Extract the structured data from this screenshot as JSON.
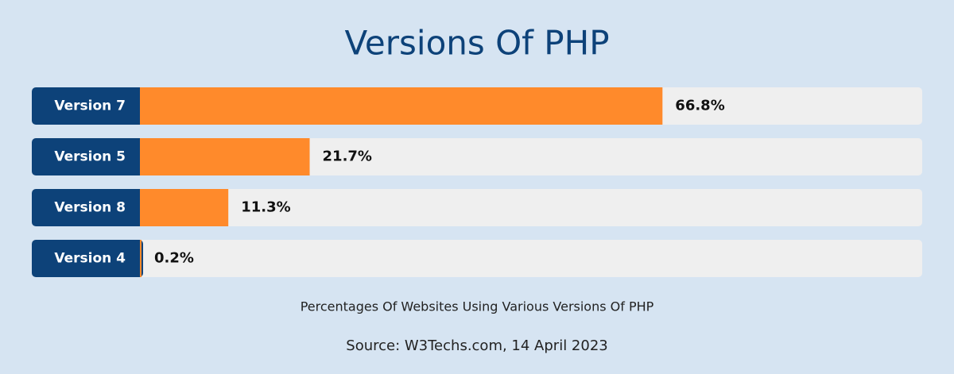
{
  "chart_data": {
    "type": "bar",
    "orientation": "horizontal",
    "title": "Versions Of PHP",
    "categories": [
      "Version 7",
      "Version 5",
      "Version 8",
      "Version 4"
    ],
    "values": [
      66.8,
      21.7,
      11.3,
      0.2
    ],
    "value_labels": [
      "66.8%",
      "21.7%",
      "11.3%",
      "0.2%"
    ],
    "color": "#ff8a2b",
    "label_color": "#0d4279",
    "xlim": [
      0,
      100
    ],
    "subtitle": "Percentages Of Websites Using Various Versions Of PHP",
    "source": "Source: W3Techs.com, 14 April 2023"
  }
}
